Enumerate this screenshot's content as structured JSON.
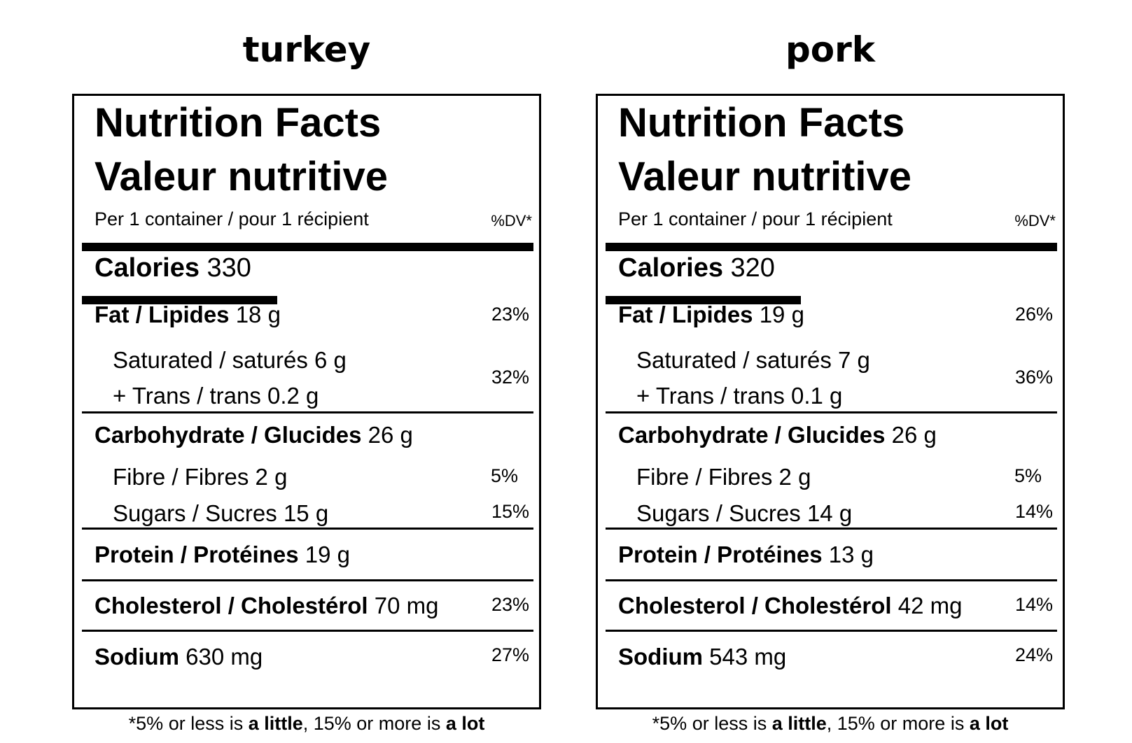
{
  "footnote": {
    "prefix": "*5% or less is ",
    "little": "a little",
    "middle": ", 15% or more is ",
    "lot": "a lot"
  },
  "labels": [
    {
      "name": "turkey",
      "heading_en": "Nutrition Facts",
      "heading_fr": "Valeur nutritive",
      "serving": "Per 1 container / pour 1 récipient",
      "dv_header": "%DV*",
      "calories_label": "Calories",
      "calories_value": "330",
      "fat_label": "Fat / Lipides",
      "fat_value": "18 g",
      "fat_dv": "23%",
      "saturated_text": "Saturated / saturés 6 g",
      "trans_text": "+ Trans / trans 0.2 g",
      "sat_trans_dv": "32%",
      "carb_label": "Carbohydrate / Glucides",
      "carb_value": "26 g",
      "fibre_text": "Fibre / Fibres 2 g",
      "fibre_dv": "5%",
      "sugars_text": "Sugars / Sucres 15 g",
      "sugars_dv": "15%",
      "protein_label": "Protein / Protéines",
      "protein_value": "19 g",
      "chol_label": "Cholesterol / Cholestérol",
      "chol_value": "70 mg",
      "chol_dv": "23%",
      "sodium_label": "Sodium",
      "sodium_value": "630 mg",
      "sodium_dv": "27%"
    },
    {
      "name": "pork",
      "heading_en": "Nutrition Facts",
      "heading_fr": "Valeur nutritive",
      "serving": "Per 1 container / pour 1 récipient",
      "dv_header": "%DV*",
      "calories_label": "Calories",
      "calories_value": "320",
      "fat_label": "Fat / Lipides",
      "fat_value": "19 g",
      "fat_dv": "26%",
      "saturated_text": "Saturated / saturés 7 g",
      "trans_text": "+ Trans / trans 0.1 g",
      "sat_trans_dv": "36%",
      "carb_label": "Carbohydrate / Glucides",
      "carb_value": "26 g",
      "fibre_text": "Fibre / Fibres 2 g",
      "fibre_dv": "5%",
      "sugars_text": "Sugars / Sucres 14 g",
      "sugars_dv": "14%",
      "protein_label": "Protein / Protéines",
      "protein_value": "13 g",
      "chol_label": "Cholesterol / Cholestérol",
      "chol_value": "42 mg",
      "chol_dv": "14%",
      "sodium_label": "Sodium",
      "sodium_value": "543 mg",
      "sodium_dv": "24%"
    }
  ]
}
